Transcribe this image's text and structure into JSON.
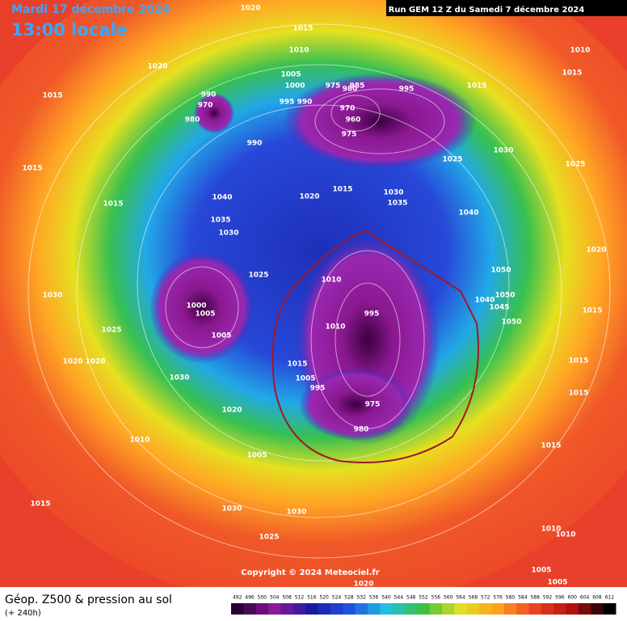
{
  "header": {
    "date": "Mardi 17 décembre 2024",
    "time": "13:00 locale",
    "run": "Run GEM 12 Z du Samedi 7 décembre 2024"
  },
  "copyright": "Copyright © 2024 Meteociel.fr",
  "legend": {
    "title": "Géop. Z500 & pression au sol",
    "lead": "(+ 240h)",
    "scale": [
      492,
      496,
      500,
      504,
      508,
      512,
      516,
      520,
      524,
      528,
      532,
      536,
      540,
      544,
      548,
      552,
      556,
      560,
      564,
      568,
      572,
      576,
      580,
      584,
      588,
      592,
      596,
      600,
      604,
      608,
      612
    ]
  },
  "pressure_labels": [
    "1020",
    "1015",
    "1010",
    "1020",
    "1015",
    "1005",
    "1000",
    "995",
    "990",
    "975",
    "980",
    "985",
    "995",
    "990",
    "970",
    "980",
    "990",
    "970",
    "960",
    "975",
    "1025",
    "1015",
    "1030",
    "1010",
    "1015",
    "1025",
    "1015",
    "1015",
    "1040",
    "1020",
    "1015",
    "1030",
    "1035",
    "1040",
    "1035",
    "1030",
    "1025",
    "1010",
    "1000",
    "1005",
    "995",
    "1010",
    "1050",
    "1050",
    "1040",
    "1045",
    "1050",
    "1020",
    "1015",
    "1030",
    "1025",
    "1020",
    "1020",
    "1005",
    "1030",
    "1015",
    "1005",
    "995",
    "975",
    "980",
    "1020",
    "1010",
    "1005",
    "1015",
    "1015",
    "1015",
    "1015",
    "1030",
    "1030",
    "1025",
    "1010",
    "1010",
    "1005",
    "1020",
    "1005"
  ]
}
